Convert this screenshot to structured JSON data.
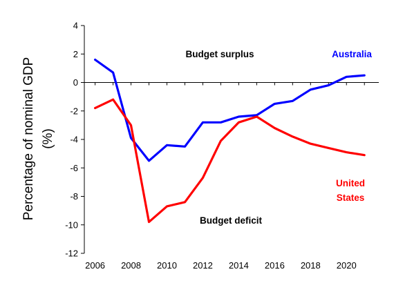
{
  "chart_data": {
    "type": "line",
    "title": "",
    "ylabel_line1": "Percentage of nominal GDP",
    "ylabel_line2": "(%)",
    "xlabel": "",
    "xlim": [
      2005.4,
      2021.8
    ],
    "ylim": [
      -12,
      4
    ],
    "x_ticks": [
      2006,
      2008,
      2010,
      2012,
      2014,
      2016,
      2018,
      2020
    ],
    "y_ticks": [
      4,
      2,
      0,
      -2,
      -4,
      -6,
      -8,
      -10,
      -12
    ],
    "grid": false,
    "x": [
      2006,
      2007,
      2008,
      2009,
      2010,
      2011,
      2012,
      2013,
      2014,
      2015,
      2016,
      2017,
      2018,
      2019,
      2020,
      2021
    ],
    "series": [
      {
        "name": "Australia",
        "color": "#0000ff",
        "values": [
          1.6,
          0.7,
          -3.9,
          -5.5,
          -4.4,
          -4.5,
          -2.8,
          -2.8,
          -2.4,
          -2.3,
          -1.5,
          -1.3,
          -0.5,
          -0.2,
          0.4,
          0.5
        ]
      },
      {
        "name": "United States",
        "label_line1": "United",
        "label_line2": "States",
        "color": "#ff0000",
        "values": [
          -1.8,
          -1.2,
          -3.0,
          -9.8,
          -8.7,
          -8.4,
          -6.7,
          -4.1,
          -2.8,
          -2.4,
          -3.2,
          -3.8,
          -4.3,
          -4.6,
          -4.9,
          -5.1
        ]
      }
    ],
    "annotations": {
      "surplus": "Budget surplus",
      "deficit": "Budget deficit"
    }
  }
}
